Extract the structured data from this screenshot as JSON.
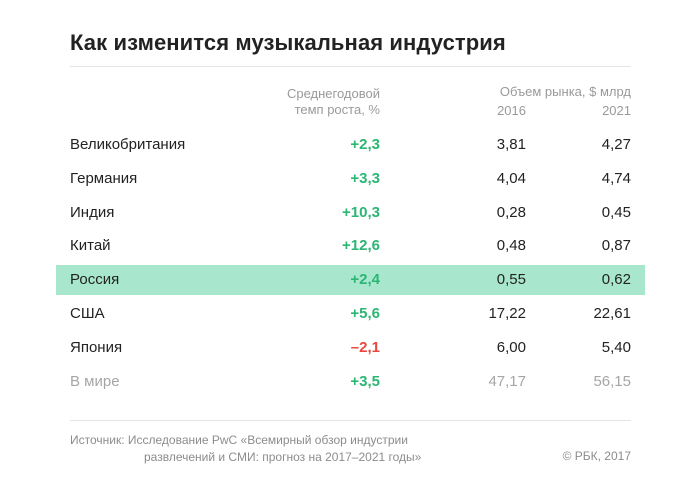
{
  "title": "Как изменится музыкальная индустрия",
  "headers": {
    "growth_line1": "Среднегодовой",
    "growth_line2": "темп роста, %",
    "market": "Объем рынка, $ млрд",
    "year1": "2016",
    "year2": "2021"
  },
  "chart_data": {
    "type": "table",
    "columns": [
      "",
      "Среднегодовой темп роста, %",
      "Объем рынка, $ млрд 2016",
      "Объем рынка, $ млрд 2021"
    ],
    "rows": [
      {
        "name": "Великобритания",
        "growth": "+2,3",
        "v2016": "3,81",
        "v2021": "4,27",
        "sign": "pos"
      },
      {
        "name": "Германия",
        "growth": "+3,3",
        "v2016": "4,04",
        "v2021": "4,74",
        "sign": "pos"
      },
      {
        "name": "Индия",
        "growth": "+10,3",
        "v2016": "0,28",
        "v2021": "0,45",
        "sign": "pos"
      },
      {
        "name": "Китай",
        "growth": "+12,6",
        "v2016": "0,48",
        "v2021": "0,87",
        "sign": "pos"
      },
      {
        "name": "Россия",
        "growth": "+2,4",
        "v2016": "0,55",
        "v2021": "0,62",
        "sign": "pos",
        "highlight": true
      },
      {
        "name": "США",
        "growth": "+5,6",
        "v2016": "17,22",
        "v2021": "22,61",
        "sign": "pos"
      },
      {
        "name": "Япония",
        "growth": "–2,1",
        "v2016": "6,00",
        "v2021": "5,40",
        "sign": "neg"
      },
      {
        "name": "В мире",
        "growth": "+3,5",
        "v2016": "47,17",
        "v2021": "56,15",
        "sign": "pos",
        "muted": true
      }
    ]
  },
  "colors": {
    "positive": "#2bb673",
    "negative": "#e8483f",
    "highlight": "#a8e7cd"
  },
  "footer": {
    "source_line1": "Источник: Исследование PwC «Всемирный обзор индустрии",
    "source_line2": "развлечений и СМИ: прогноз на 2017–2021 годы»",
    "copyright": "© РБК, 2017"
  }
}
